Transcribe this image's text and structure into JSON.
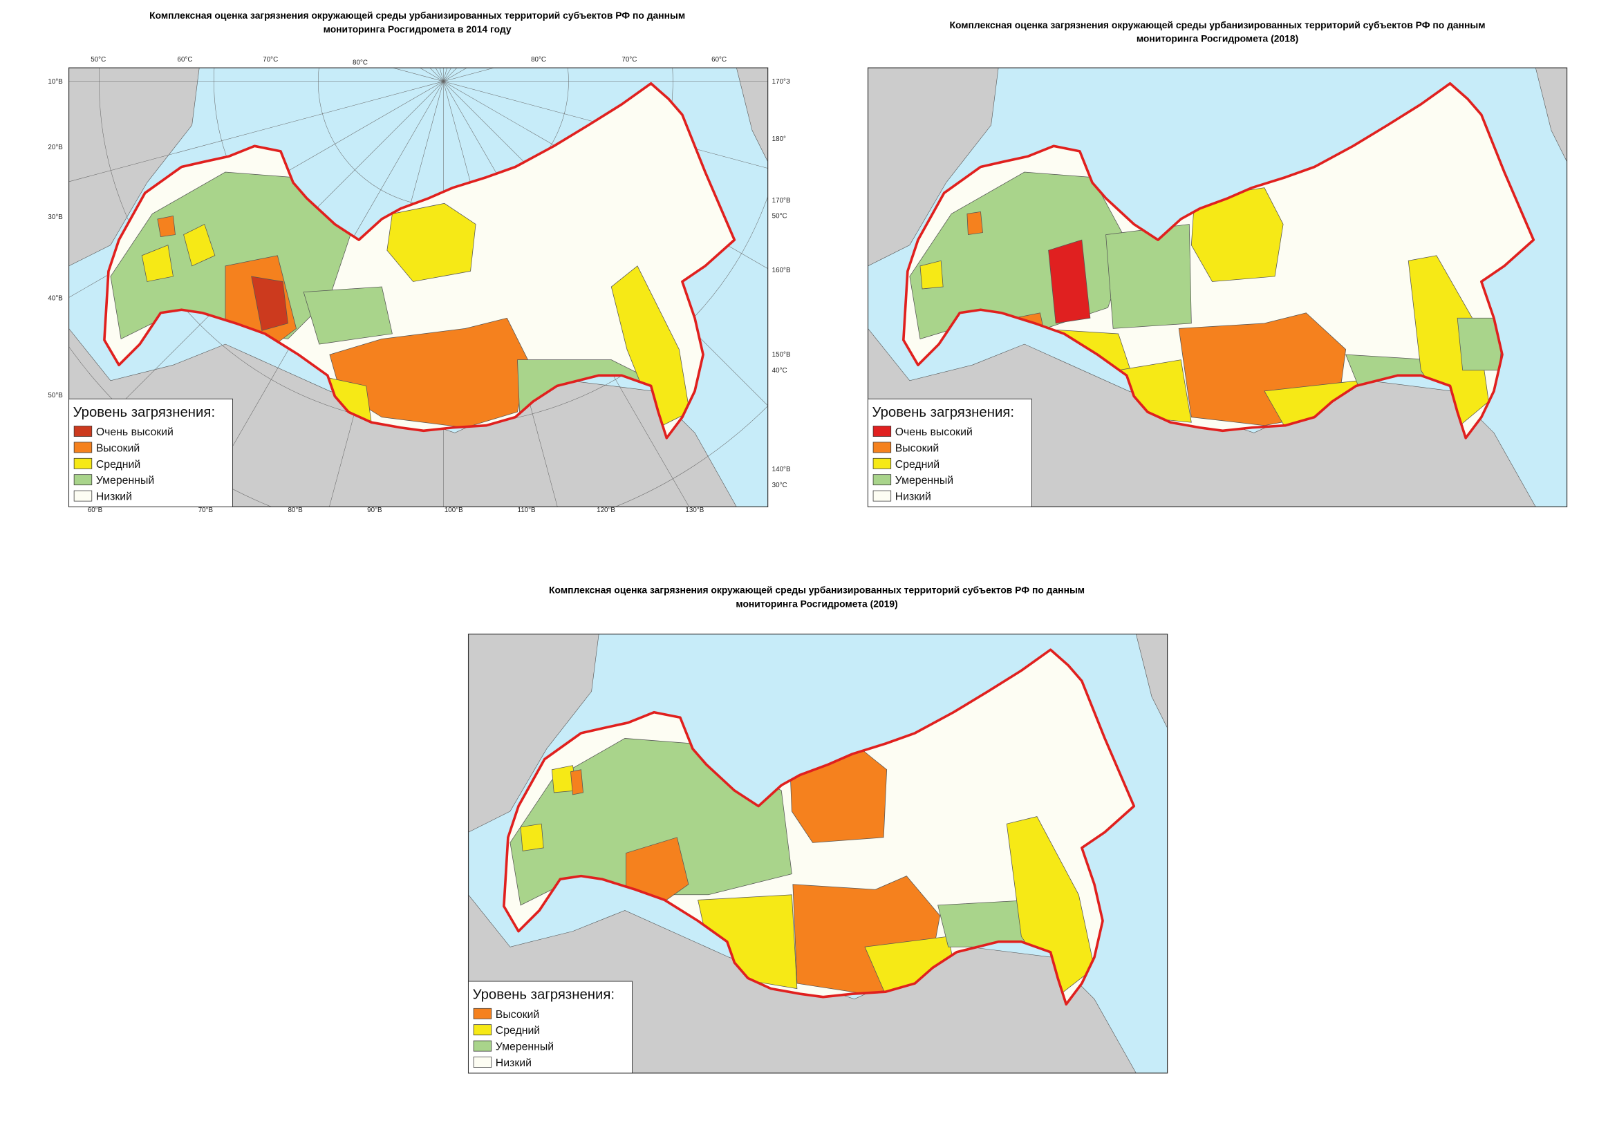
{
  "maps": [
    {
      "title": [
        "Комплексная оценка загрязнения окружающей среды урбанизированных территорий субъектов РФ по данным",
        "мониторинга Росгидромета в 2014 году"
      ],
      "legend": {
        "title": "Уровень загрязнения:",
        "items": [
          {
            "label": "Очень высокий",
            "color": "#cc3a1e"
          },
          {
            "label": "Высокий",
            "color": "#f5811e"
          },
          {
            "label": "Средний",
            "color": "#f6e916"
          },
          {
            "label": "Умеренный",
            "color": "#a9d48b"
          },
          {
            "label": "Низкий",
            "color": "#fdfdf3"
          }
        ]
      },
      "graticule": {
        "top": [
          "50°С",
          "60°С",
          "70°С",
          "80°С",
          "80°С",
          "70°С",
          "60°С"
        ],
        "left": [
          "10°В",
          "20°В",
          "30°В",
          "40°В",
          "50°В"
        ],
        "right": [
          "170°З",
          "180°",
          "170°В",
          "50°С",
          "160°В",
          "150°В",
          "40°С",
          "140°В",
          "30°С"
        ],
        "bottom": [
          "60°В",
          "70°В",
          "80°В",
          "90°В",
          "100°В",
          "110°В",
          "120°В",
          "130°В"
        ]
      }
    },
    {
      "title": [
        "Комплексная оценка загрязнения окружающей среды урбанизированных территорий субъектов РФ по данным",
        "мониторинга Росгидромета (2018)"
      ],
      "legend": {
        "title": "Уровень загрязнения:",
        "items": [
          {
            "label": "Очень высокий",
            "color": "#e02020"
          },
          {
            "label": "Высокий",
            "color": "#f5811e"
          },
          {
            "label": "Средний",
            "color": "#f6e916"
          },
          {
            "label": "Умеренный",
            "color": "#a9d48b"
          },
          {
            "label": "Низкий",
            "color": "#fdfdf3"
          }
        ]
      }
    },
    {
      "title": [
        "Комплексная оценка загрязнения окружающей среды урбанизированных территорий субъектов РФ по данным",
        "мониторинга Росгидромета (2019)"
      ],
      "legend": {
        "title": "Уровень загрязнения:",
        "items": [
          {
            "label": "Высокий",
            "color": "#f5811e"
          },
          {
            "label": "Средний",
            "color": "#f6e916"
          },
          {
            "label": "Умеренный",
            "color": "#a9d48b"
          },
          {
            "label": "Низкий",
            "color": "#fdfdf3"
          }
        ]
      }
    }
  ]
}
